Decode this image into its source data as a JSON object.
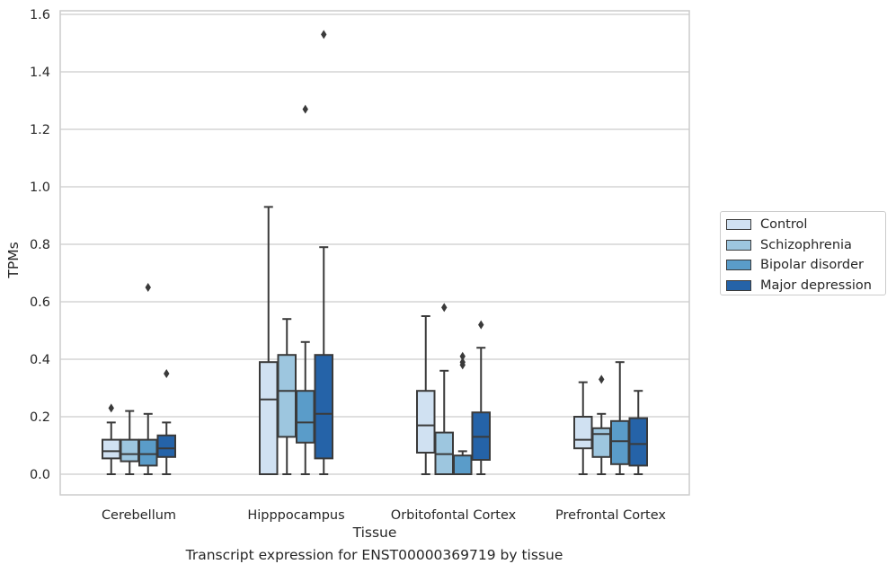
{
  "chart_data": {
    "type": "box",
    "xlabel": "Tissue",
    "ylabel": "TPMs",
    "caption": "Transcript expression for ENST00000369719 by tissue",
    "ylim": [
      -0.07,
      1.61
    ],
    "yticks": [
      0.0,
      0.2,
      0.4,
      0.6,
      0.8,
      1.0,
      1.2,
      1.4,
      1.6
    ],
    "ytick_labels": [
      "0.0",
      "0.2",
      "0.4",
      "0.6",
      "0.8",
      "1.0",
      "1.2",
      "1.4",
      "1.6"
    ],
    "grid": "horizontal",
    "legend_position": "right",
    "categories": [
      "Cerebellum",
      "Hipppocampus",
      "Orbitofontal Cortex",
      "Prefrontal Cortex"
    ],
    "series": [
      {
        "name": "Control",
        "color": "#d0e1f2",
        "boxes": [
          {
            "min": 0.0,
            "q1": 0.055,
            "median": 0.08,
            "q3": 0.12,
            "max": 0.18,
            "outliers": [
              0.23
            ]
          },
          {
            "min": 0.0,
            "q1": 0.0,
            "median": 0.26,
            "q3": 0.39,
            "max": 0.93,
            "outliers": []
          },
          {
            "min": 0.0,
            "q1": 0.075,
            "median": 0.17,
            "q3": 0.29,
            "max": 0.55,
            "outliers": []
          },
          {
            "min": 0.0,
            "q1": 0.09,
            "median": 0.12,
            "q3": 0.2,
            "max": 0.32,
            "outliers": []
          }
        ]
      },
      {
        "name": "Schizophrenia",
        "color": "#9dc6df",
        "boxes": [
          {
            "min": 0.0,
            "q1": 0.045,
            "median": 0.07,
            "q3": 0.12,
            "max": 0.22,
            "outliers": []
          },
          {
            "min": 0.0,
            "q1": 0.13,
            "median": 0.29,
            "q3": 0.415,
            "max": 0.54,
            "outliers": []
          },
          {
            "min": 0.0,
            "q1": 0.0,
            "median": 0.07,
            "q3": 0.145,
            "max": 0.36,
            "outliers": [
              0.58
            ]
          },
          {
            "min": 0.0,
            "q1": 0.06,
            "median": 0.14,
            "q3": 0.16,
            "max": 0.21,
            "outliers": [
              0.33
            ]
          }
        ]
      },
      {
        "name": "Bipolar disorder",
        "color": "#5a9cc9",
        "boxes": [
          {
            "min": 0.0,
            "q1": 0.03,
            "median": 0.07,
            "q3": 0.12,
            "max": 0.21,
            "outliers": [
              0.65
            ]
          },
          {
            "min": 0.0,
            "q1": 0.11,
            "median": 0.18,
            "q3": 0.29,
            "max": 0.46,
            "outliers": [
              1.27
            ]
          },
          {
            "min": 0.0,
            "q1": 0.0,
            "median": 0.0,
            "q3": 0.065,
            "max": 0.08,
            "outliers": [
              0.38,
              0.39,
              0.41
            ]
          },
          {
            "min": 0.0,
            "q1": 0.035,
            "median": 0.115,
            "q3": 0.185,
            "max": 0.39,
            "outliers": []
          }
        ]
      },
      {
        "name": "Major depression",
        "color": "#2563a8",
        "boxes": [
          {
            "min": 0.0,
            "q1": 0.06,
            "median": 0.09,
            "q3": 0.135,
            "max": 0.18,
            "outliers": [
              0.35
            ]
          },
          {
            "min": 0.0,
            "q1": 0.055,
            "median": 0.21,
            "q3": 0.415,
            "max": 0.79,
            "outliers": [
              1.53
            ]
          },
          {
            "min": 0.0,
            "q1": 0.05,
            "median": 0.13,
            "q3": 0.215,
            "max": 0.44,
            "outliers": [
              0.52
            ]
          },
          {
            "min": 0.0,
            "q1": 0.03,
            "median": 0.105,
            "q3": 0.195,
            "max": 0.29,
            "outliers": []
          }
        ]
      }
    ]
  }
}
